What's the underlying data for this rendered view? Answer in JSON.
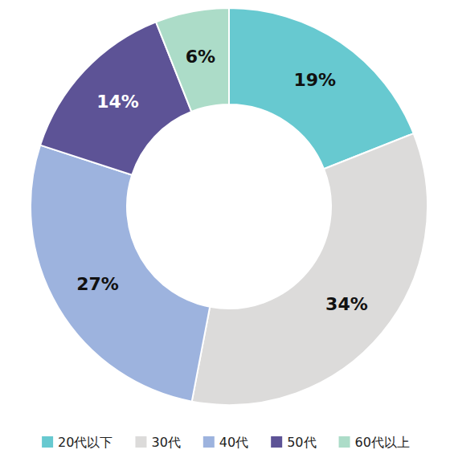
{
  "chart_data": {
    "type": "pie",
    "categories": [
      "20代以下",
      "30代",
      "40代",
      "50代",
      "60代以上"
    ],
    "values": [
      19,
      34,
      27,
      14,
      6
    ],
    "value_labels": [
      "19%",
      "34%",
      "27%",
      "14%",
      "6%"
    ],
    "colors": [
      "#67c9d0",
      "#dcdbda",
      "#9db3de",
      "#5d5396",
      "#acdcc8"
    ],
    "data_labels": true,
    "legend": "bottom"
  }
}
